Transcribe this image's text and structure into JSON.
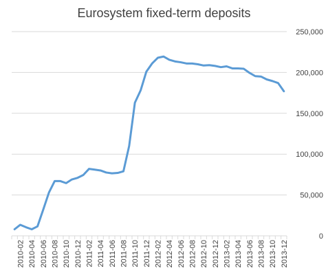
{
  "chart_data": {
    "type": "line",
    "title": "Eurosystem fixed-term deposits",
    "xlabel": "",
    "ylabel": "",
    "y_axis_side": "right",
    "ylim": [
      0,
      250000
    ],
    "y_ticks": [
      "0",
      "50,000",
      "100,000",
      "150,000",
      "200,000",
      "250,000"
    ],
    "grid": "horizontal",
    "legend": "none",
    "line_color": "#5B9BD5",
    "x": [
      "2010-01",
      "2010-02",
      "2010-03",
      "2010-04",
      "2010-05",
      "2010-06",
      "2010-07",
      "2010-08",
      "2010-09",
      "2010-10",
      "2010-11",
      "2010-12",
      "2011-01",
      "2011-02",
      "2011-03",
      "2011-04",
      "2011-05",
      "2011-06",
      "2011-07",
      "2011-08",
      "2011-09",
      "2011-10",
      "2011-11",
      "2011-12",
      "2012-01",
      "2012-02",
      "2012-03",
      "2012-04",
      "2012-05",
      "2012-06",
      "2012-07",
      "2012-08",
      "2012-09",
      "2012-10",
      "2012-11",
      "2012-12",
      "2013-01",
      "2013-02",
      "2013-03",
      "2013-04",
      "2013-05",
      "2013-06",
      "2013-07",
      "2013-08",
      "2013-09",
      "2013-10",
      "2013-11",
      "2013-12"
    ],
    "x_tick_labels": [
      "2010-02",
      "2010-04",
      "2010-06",
      "2010-08",
      "2010-10",
      "2010-12",
      "2011-02",
      "2011-04",
      "2011-06",
      "2011-08",
      "2011-10",
      "2011-12",
      "2012-02",
      "2012-04",
      "2012-06",
      "2012-08",
      "2012-10",
      "2012-12",
      "2013-02",
      "2013-04",
      "2013-06",
      "2013-08",
      "2013-10",
      "2013-12"
    ],
    "values": [
      8000,
      13500,
      10500,
      8000,
      11500,
      32000,
      53000,
      67000,
      67000,
      64500,
      69000,
      71000,
      74500,
      82000,
      81000,
      80000,
      77500,
      76500,
      77000,
      79000,
      110000,
      163000,
      178000,
      201000,
      211000,
      218000,
      219500,
      215500,
      213500,
      212500,
      211000,
      211000,
      210000,
      208500,
      209000,
      208000,
      206500,
      207500,
      205000,
      205000,
      204500,
      199500,
      195500,
      195000,
      191500,
      189500,
      187000,
      177000
    ]
  }
}
